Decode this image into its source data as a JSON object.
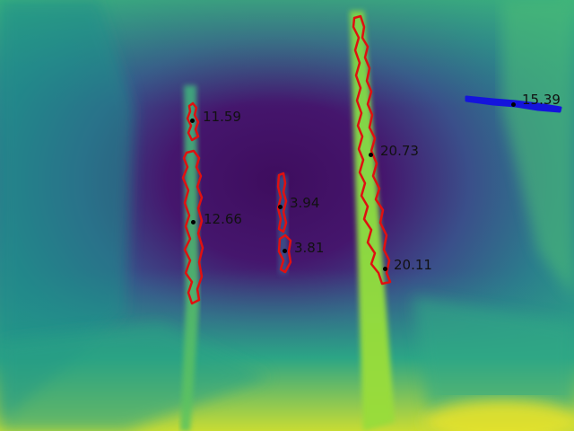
{
  "measurements": [
    {
      "value": "11.59",
      "color": "#e01010"
    },
    {
      "value": "12.66",
      "color": "#e01010"
    },
    {
      "value": "3.94",
      "color": "#e01010"
    },
    {
      "value": "3.81",
      "color": "#e01010"
    },
    {
      "value": "20.73",
      "color": "#e01010"
    },
    {
      "value": "20.11",
      "color": "#e01010"
    },
    {
      "value": "15.39",
      "color": "#1010e0"
    }
  ]
}
